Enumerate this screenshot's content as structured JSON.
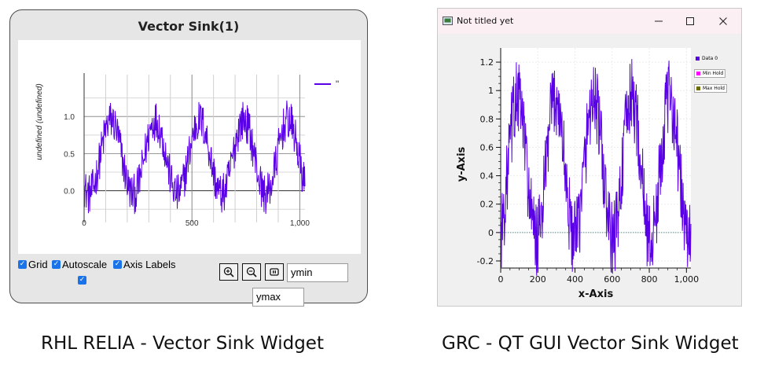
{
  "relia": {
    "title": "Vector Sink(1)",
    "ylabel": "undefined (undefined)",
    "legend_label": "\"",
    "controls": {
      "grid_label": "Grid",
      "autoscale_label": "Autoscale",
      "axis_labels_label": "Axis Labels",
      "ymin_value": "ymin",
      "ymax_value": "ymax"
    },
    "caption": "RHL RELIA - Vector Sink Widget"
  },
  "grc": {
    "window_title": "Not titled yet",
    "legend": [
      "Data 0",
      "Min Hold",
      "Max Hold"
    ],
    "xlabel": "x-Axis",
    "ylabel": "y-Axis",
    "caption": "GRC - QT GUI Vector Sink Widget"
  },
  "colors": {
    "signal": "#5a00e6",
    "min_hold": "#ff00ff",
    "max_hold": "#6b6b00",
    "accent_checkbox": "#1a73e8"
  },
  "chart_data": [
    {
      "type": "line",
      "xlabel": "",
      "ylabel": "undefined (undefined)",
      "xlim": [
        0,
        1024
      ],
      "ylim": [
        -0.3,
        1.5
      ],
      "xticks": [
        0,
        500,
        1000
      ],
      "xtick_labels": [
        "0",
        "500",
        "1,000"
      ],
      "yticks": [
        0,
        0.5,
        1.0
      ],
      "ytick_labels": [
        "0.0",
        "0.5",
        "1.0"
      ],
      "grid": true,
      "legend": "top-right",
      "series": [
        {
          "name": "\"",
          "color": "#5a00e6",
          "description": "noisy sinusoid, period ~205 samples, amplitude ~0.5, offset ~0.45",
          "peaks_x": [
            125,
            330,
            535,
            740,
            945
          ],
          "peak_y": 1.1,
          "trough_y": -0.2
        }
      ]
    },
    {
      "type": "line",
      "xlabel": "x-Axis",
      "ylabel": "y-Axis",
      "xlim": [
        0,
        1024
      ],
      "ylim": [
        -0.25,
        1.3
      ],
      "xticks": [
        0,
        200,
        400,
        600,
        800,
        1000
      ],
      "xtick_labels": [
        "0",
        "200",
        "400",
        "600",
        "800",
        "1,000"
      ],
      "yticks": [
        -0.2,
        0,
        0.2,
        0.4,
        0.6,
        0.8,
        1,
        1.2
      ],
      "ytick_labels": [
        "-0.2",
        "0",
        "0.2",
        "0.4",
        "0.6",
        "0.8",
        "1",
        "1.2"
      ],
      "grid": true,
      "legend": "right",
      "series": [
        {
          "name": "Data 0",
          "color": "#5a00e6",
          "description": "noisy sinusoid, period ~205 samples",
          "peaks_x": [
            90,
            295,
            500,
            705,
            910
          ],
          "peak_y": 1.15,
          "trough_y": -0.2
        },
        {
          "name": "Min Hold",
          "color": "#ff00ff"
        },
        {
          "name": "Max Hold",
          "color": "#6b6b00"
        }
      ]
    }
  ]
}
